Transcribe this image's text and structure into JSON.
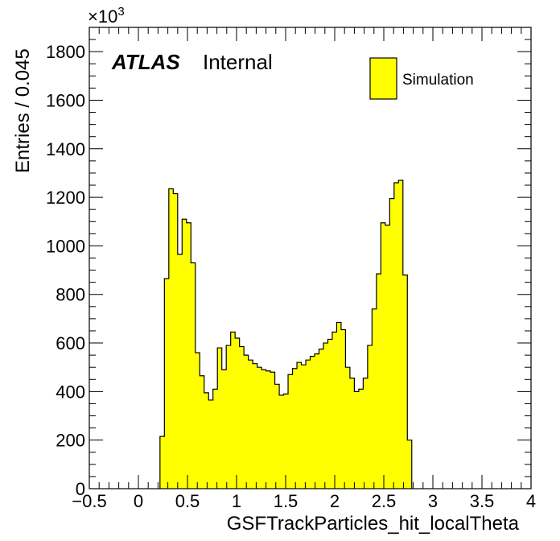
{
  "chart_data": {
    "type": "bar",
    "style": "histogram",
    "xlabel": "GSFTrackParticles_hit_localTheta",
    "ylabel": "Entries / 0.045",
    "y_multiplier": "×10",
    "y_multiplier_exp": "3",
    "xlim": [
      -0.5,
      4.0
    ],
    "ylim": [
      0,
      1900
    ],
    "x_ticks": [
      -0.5,
      0,
      0.5,
      1,
      1.5,
      2,
      2.5,
      3,
      3.5,
      4
    ],
    "x_tick_labels": [
      "−0.5",
      "0",
      "0.5",
      "1",
      "1.5",
      "2",
      "2.5",
      "3",
      "3.5",
      "4"
    ],
    "y_ticks": [
      0,
      200,
      400,
      600,
      800,
      1000,
      1200,
      1400,
      1600,
      1800
    ],
    "y_tick_labels": [
      "0",
      "200",
      "400",
      "600",
      "800",
      "1000",
      "1200",
      "1400",
      "1600",
      "1800"
    ],
    "bin_width": 0.045,
    "bin_start": 0.22,
    "values": [
      215,
      865,
      1235,
      1215,
      965,
      1110,
      1095,
      930,
      560,
      465,
      395,
      365,
      410,
      580,
      490,
      590,
      645,
      620,
      585,
      550,
      530,
      515,
      500,
      490,
      485,
      480,
      430,
      385,
      390,
      470,
      495,
      520,
      510,
      530,
      545,
      555,
      575,
      600,
      615,
      645,
      685,
      655,
      500,
      455,
      400,
      410,
      455,
      590,
      740,
      885,
      1095,
      1085,
      1195,
      1260,
      1270,
      880,
      200
    ],
    "fill_color": "#ffff00",
    "line_color": "#000000",
    "legend": [
      {
        "name": "Simulation",
        "color": "#ffff00"
      }
    ],
    "legend_position": "top-right",
    "grid": false,
    "label_bold": "ATLAS",
    "label_text": "Internal"
  }
}
